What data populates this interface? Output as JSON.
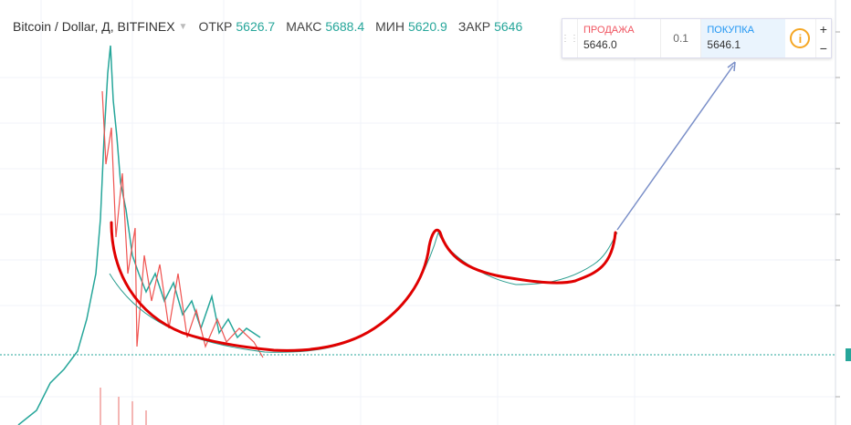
{
  "header": {
    "symbol": "Bitcoin / Dollar, Д, BITFINEX",
    "open_label": "ОТКР",
    "open": "5626.7",
    "high_label": "МАКС",
    "high": "5688.4",
    "low_label": "МИН",
    "low": "5620.9",
    "close_label": "ЗАКР",
    "close": "5646"
  },
  "trade_panel": {
    "sell_label": "ПРОДАЖА",
    "sell_price": "5646.0",
    "quantity": "0.1",
    "buy_label": "ПОКУПКА",
    "buy_price": "5646.1"
  },
  "zoom": {
    "plus": "+",
    "minus": "−"
  }
}
